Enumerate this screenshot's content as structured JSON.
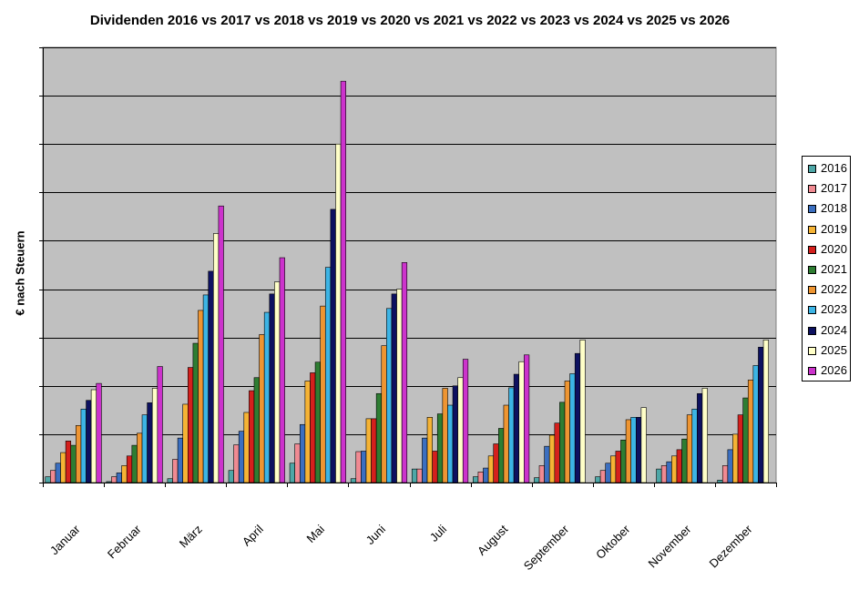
{
  "chart_data": {
    "type": "bar",
    "title": "Dividenden 2016 vs 2017 vs 2018 vs 2019 vs 2020 vs 2021 vs 2022 vs 2023 vs 2024 vs 2025 vs 2026",
    "xlabel": "",
    "ylabel": "€ nach Steuern",
    "ylim": [
      0,
      9
    ],
    "grid": true,
    "legend": "right",
    "categories": [
      "Januar",
      "Februar",
      "März",
      "April",
      "Mai",
      "Juni",
      "Juli",
      "August",
      "September",
      "Oktober",
      "November",
      "Dezember"
    ],
    "series": [
      {
        "name": "2016",
        "color": "#4EA7A7",
        "values": [
          0.12,
          0.02,
          0.08,
          0.25,
          0.4,
          0.08,
          0.28,
          0.12,
          0.1,
          0.12,
          0.28,
          0.05
        ]
      },
      {
        "name": "2017",
        "color": "#F08A92",
        "values": [
          0.25,
          0.12,
          0.48,
          0.78,
          0.8,
          0.64,
          0.28,
          0.22,
          0.35,
          0.25,
          0.35,
          0.35
        ]
      },
      {
        "name": "2018",
        "color": "#3B6FC0",
        "values": [
          0.4,
          0.2,
          0.92,
          1.06,
          1.2,
          0.65,
          0.92,
          0.3,
          0.75,
          0.4,
          0.43,
          0.68
        ]
      },
      {
        "name": "2019",
        "color": "#F5B335",
        "values": [
          0.62,
          0.35,
          1.62,
          1.45,
          2.1,
          1.32,
          1.35,
          0.55,
          0.98,
          0.55,
          0.55,
          1.0
        ]
      },
      {
        "name": "2020",
        "color": "#D4201D",
        "values": [
          0.86,
          0.55,
          2.38,
          1.9,
          2.27,
          1.32,
          0.65,
          0.8,
          1.23,
          0.65,
          0.68,
          1.4
        ]
      },
      {
        "name": "2021",
        "color": "#2E7D32",
        "values": [
          0.77,
          0.77,
          2.88,
          2.17,
          2.49,
          1.84,
          1.42,
          1.12,
          1.66,
          0.88,
          0.9,
          1.75
        ]
      },
      {
        "name": "2022",
        "color": "#EE9532",
        "values": [
          1.18,
          1.02,
          3.56,
          3.06,
          3.65,
          2.83,
          1.95,
          1.6,
          2.1,
          1.3,
          1.4,
          2.12
        ]
      },
      {
        "name": "2023",
        "color": "#3CB4E5",
        "values": [
          1.52,
          1.4,
          3.88,
          3.52,
          4.45,
          3.6,
          1.6,
          1.96,
          2.25,
          1.35,
          1.52,
          2.42
        ]
      },
      {
        "name": "2024",
        "color": "#0D1160",
        "values": [
          1.7,
          1.65,
          4.37,
          3.9,
          5.65,
          3.9,
          2.0,
          2.24,
          2.67,
          1.35,
          1.84,
          2.8
        ]
      },
      {
        "name": "2025",
        "color": "#FFFFC8",
        "values": [
          1.92,
          1.95,
          5.15,
          4.15,
          7.0,
          4.0,
          2.17,
          2.5,
          2.95,
          1.55,
          1.95,
          2.95
        ]
      },
      {
        "name": "2026",
        "color": "#CC33CC",
        "values": [
          2.05,
          2.4,
          5.72,
          4.65,
          8.3,
          4.55,
          2.55,
          2.64,
          null,
          null,
          null,
          null
        ]
      }
    ]
  }
}
